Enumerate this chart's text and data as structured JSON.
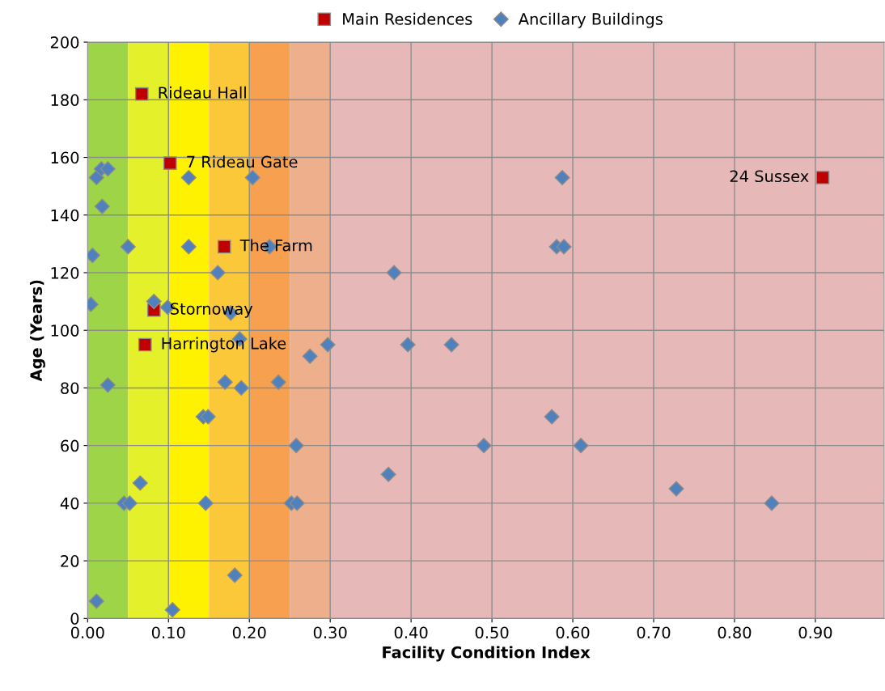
{
  "chart_data": {
    "type": "scatter",
    "xlabel": "Facility Condition Index",
    "ylabel": "Age (Years)",
    "xlim": [
      0,
      0.985
    ],
    "xticks": [
      {
        "value": 0,
        "label": "0.00"
      },
      {
        "value": 0.1,
        "label": "0.10"
      },
      {
        "value": 0.2,
        "label": "0.20"
      },
      {
        "value": 0.3,
        "label": "0.30"
      },
      {
        "value": 0.4,
        "label": "0.40"
      },
      {
        "value": 0.5,
        "label": "0.50"
      },
      {
        "value": 0.6,
        "label": "0.60"
      },
      {
        "value": 0.7,
        "label": "0.70"
      },
      {
        "value": 0.8,
        "label": "0.80"
      },
      {
        "value": 0.9,
        "label": "0.90"
      }
    ],
    "ylim": [
      0,
      200
    ],
    "yticks": [
      0,
      20,
      40,
      60,
      80,
      100,
      120,
      140,
      160,
      180,
      200
    ],
    "grid": true,
    "legend": "top",
    "bands": [
      {
        "axis": "x",
        "from": 0,
        "to": 0.05,
        "color": "#9ed447"
      },
      {
        "axis": "x",
        "from": 0.05,
        "to": 0.1,
        "color": "#e3f02a"
      },
      {
        "axis": "x",
        "from": 0.1,
        "to": 0.15,
        "color": "#fff200"
      },
      {
        "axis": "x",
        "from": 0.15,
        "to": 0.2,
        "color": "#fbc83a"
      },
      {
        "axis": "x",
        "from": 0.2,
        "to": 0.25,
        "color": "#f6a050"
      },
      {
        "axis": "x",
        "from": 0.25,
        "to": 0.3,
        "color": "#eeb08c"
      },
      {
        "axis": "x",
        "from": 0.3,
        "to": 0.985,
        "color": "#e6b9b8"
      }
    ],
    "series": [
      {
        "name": "Main Residences",
        "color": "#c00000",
        "marker": "square",
        "x": [
          0.067,
          0.102,
          0.169,
          0.082,
          0.071,
          0.909
        ],
        "values": [
          182,
          158,
          129,
          107,
          95,
          153
        ]
      },
      {
        "name": "Ancillary Buildings",
        "color": "#4f81bd",
        "marker": "diamond",
        "x": [
          0.004,
          0.006,
          0.011,
          0.017,
          0.025,
          0.018,
          0.05,
          0.025,
          0.011,
          0.065,
          0.045,
          0.052,
          0.082,
          0.099,
          0.105,
          0.125,
          0.125,
          0.161,
          0.177,
          0.188,
          0.17,
          0.19,
          0.143,
          0.149,
          0.146,
          0.182,
          0.204,
          0.225,
          0.236,
          0.258,
          0.252,
          0.259,
          0.275,
          0.297,
          0.379,
          0.396,
          0.45,
          0.372,
          0.49,
          0.587,
          0.58,
          0.589,
          0.574,
          0.61,
          0.728,
          0.846
        ],
        "values": [
          109,
          126,
          153,
          156,
          156,
          143,
          129,
          81,
          6,
          47,
          40,
          40,
          110,
          108,
          3,
          153,
          129,
          120,
          106,
          97,
          82,
          80,
          70,
          70,
          40,
          15,
          153,
          129,
          82,
          60,
          40,
          40,
          91,
          95,
          120,
          95,
          95,
          50,
          60,
          153,
          129,
          129,
          70,
          60,
          45,
          40
        ]
      }
    ],
    "annotations": [
      {
        "text": "Rideau Hall",
        "x": 0.067,
        "y": 182
      },
      {
        "text": "7 Rideau Gate",
        "x": 0.102,
        "y": 158
      },
      {
        "text": "The Farm",
        "x": 0.169,
        "y": 129
      },
      {
        "text": "Stornoway",
        "x": 0.082,
        "y": 107
      },
      {
        "text": "Harrington Lake",
        "x": 0.071,
        "y": 95
      },
      {
        "text": "24 Sussex",
        "x": 0.909,
        "y": 153
      }
    ]
  }
}
